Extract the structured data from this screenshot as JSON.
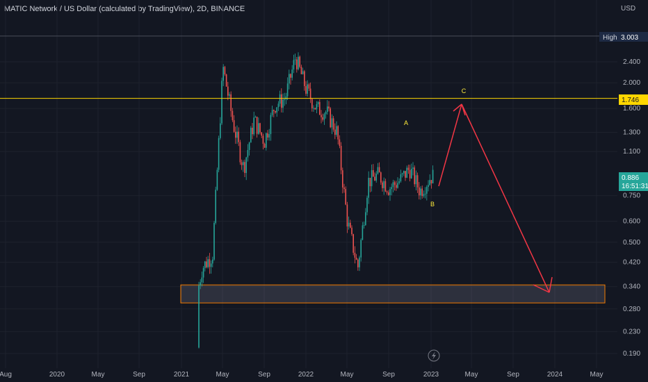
{
  "header": {
    "title": "MATIC Network / US Dollar (calculated by TradingView), 2D, BINANCE"
  },
  "price_scale": {
    "currency": "USD",
    "high_label": "High",
    "high_value": "3.003",
    "resistance_value": "1.746",
    "last_price": "0.886",
    "countdown": "16:51:31"
  },
  "colors": {
    "background": "#131722",
    "up": "#26a69a",
    "down": "#ef5350",
    "annotation": "#f23645",
    "level": "#ffd600",
    "label": "#ffeb3b"
  },
  "chart_data": {
    "type": "candlestick",
    "title": "MATIC Network / US Dollar (calculated by TradingView), 2D, BINANCE",
    "y_scale": "log",
    "ylim": [
      0.17,
      3.6
    ],
    "y_ticks": [
      "2.400",
      "2.000",
      "1.600",
      "1.300",
      "1.100",
      "0.750",
      "0.600",
      "0.500",
      "0.420",
      "0.340",
      "0.280",
      "0.230",
      "0.190"
    ],
    "x_ticks": [
      "Aug",
      "2020",
      "May",
      "Sep",
      "2021",
      "May",
      "Sep",
      "2022",
      "May",
      "Sep",
      "2023",
      "May",
      "Sep",
      "2024",
      "May"
    ],
    "series": [
      {
        "x": [
          "2021-02",
          "2021-03",
          "2021-04",
          "2021-05",
          "2021-06",
          "2021-07",
          "2021-08",
          "2021-09",
          "2021-10",
          "2021-11",
          "2021-12",
          "2022-01",
          "2022-02",
          "2022-03",
          "2022-04",
          "2022-05",
          "2022-06",
          "2022-07",
          "2022-08",
          "2022-09",
          "2022-10",
          "2022-11",
          "2022-12",
          "2023-01"
        ],
        "close": [
          0.25,
          0.4,
          0.45,
          2.3,
          1.4,
          0.95,
          1.45,
          1.2,
          1.65,
          1.75,
          2.5,
          1.9,
          1.6,
          1.55,
          1.3,
          0.6,
          0.4,
          0.85,
          0.9,
          0.8,
          0.85,
          0.95,
          0.78,
          0.886
        ]
      }
    ],
    "annotations": {
      "wave_labels": [
        "A",
        "B",
        "C"
      ],
      "horizontal_level": 1.746,
      "support_zone": [
        0.295,
        0.345
      ]
    }
  }
}
